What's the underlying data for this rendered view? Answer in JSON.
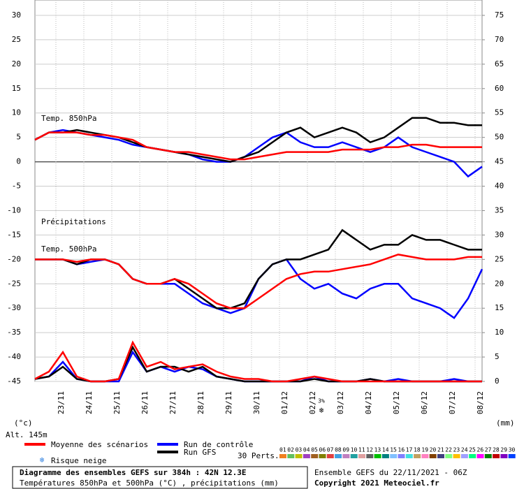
{
  "chart_data": {
    "type": "line",
    "labels": {
      "t850": "Temp. 850hPa",
      "precip": "Précipitations",
      "t500": "Temp. 500hPa",
      "yunit": "(°c)",
      "y2unit": "(mm)",
      "alt": "Alt. 145m"
    },
    "x": [
      0,
      12,
      24,
      36,
      48,
      60,
      72,
      84,
      96,
      108,
      120,
      132,
      144,
      156,
      168,
      180,
      192,
      204,
      216,
      228,
      240,
      252,
      264,
      276,
      288,
      300,
      312,
      324,
      336,
      348,
      360,
      372,
      384
    ],
    "xlim": [
      0,
      384
    ],
    "xticks": [
      {
        "value": 18,
        "label": "23/11"
      },
      {
        "value": 42,
        "label": "24/11"
      },
      {
        "value": 66,
        "label": "25/11"
      },
      {
        "value": 90,
        "label": "26/11"
      },
      {
        "value": 114,
        "label": "27/11"
      },
      {
        "value": 138,
        "label": "28/11"
      },
      {
        "value": 162,
        "label": "29/11"
      },
      {
        "value": 186,
        "label": "30/11"
      },
      {
        "value": 210,
        "label": "01/12"
      },
      {
        "value": 234,
        "label": "02/12"
      },
      {
        "value": 258,
        "label": "03/12"
      },
      {
        "value": 282,
        "label": "04/12"
      },
      {
        "value": 306,
        "label": "05/12"
      },
      {
        "value": 330,
        "label": "06/12"
      },
      {
        "value": 354,
        "label": "07/12"
      },
      {
        "value": 378,
        "label": "08/12"
      }
    ],
    "ylim": [
      -45,
      30
    ],
    "yticks": [
      30,
      25,
      20,
      15,
      10,
      5,
      0,
      -5,
      -10,
      -15,
      -20,
      -25,
      -30,
      -35,
      -40,
      -45
    ],
    "y2lim": [
      0,
      75
    ],
    "y2ticks": [
      75,
      70,
      65,
      60,
      55,
      50,
      45,
      40,
      35,
      30,
      25,
      20,
      15,
      10,
      5,
      0
    ],
    "grid": true,
    "groups": [
      {
        "name": "Moyenne des scénarios",
        "color": "#ff0000",
        "t850": [
          4.5,
          6,
          6,
          6,
          5.5,
          5.5,
          5,
          4.5,
          3,
          2.5,
          2,
          2,
          1.5,
          1,
          0.5,
          0.5,
          1,
          1.5,
          2,
          2,
          2,
          2,
          2.5,
          2.5,
          2.5,
          3,
          3,
          3.5,
          3.5,
          3,
          3,
          3,
          3
        ],
        "t500": [
          -20,
          -20,
          -20,
          -20.5,
          -20,
          -20,
          -21,
          -24,
          -25,
          -25,
          -24,
          -25,
          -27,
          -29,
          -30,
          -30,
          -28,
          -26,
          -24,
          -23,
          -22.5,
          -22.5,
          -22,
          -21.5,
          -21,
          -20,
          -19,
          -19.5,
          -20,
          -20,
          -20,
          -19.5,
          -19.5
        ],
        "precip": [
          0.5,
          2,
          6,
          1,
          0,
          0,
          0.5,
          8,
          3,
          4,
          2.5,
          3,
          3.5,
          2,
          1,
          0.5,
          0.5,
          0,
          0,
          0.5,
          1,
          0.5,
          0,
          0,
          0,
          0,
          0,
          0,
          0,
          0,
          0,
          0,
          0
        ]
      },
      {
        "name": "Run de contrôle",
        "color": "#0000ff",
        "t850": [
          4.5,
          6,
          6.5,
          6,
          5.5,
          5,
          4.5,
          3.5,
          3,
          2.5,
          2,
          1.5,
          0.5,
          0,
          0,
          1,
          3,
          5,
          6,
          4,
          3,
          3,
          4,
          3,
          2,
          3,
          5,
          3,
          2,
          1,
          0,
          -3,
          -1
        ],
        "t500": [
          -20,
          -20,
          -20,
          -21,
          -20.5,
          -20,
          -21,
          -24,
          -25,
          -25,
          -25,
          -27,
          -29,
          -30,
          -31,
          -30,
          -24,
          -21,
          -20,
          -24,
          -26,
          -25,
          -27,
          -28,
          -26,
          -25,
          -25,
          -28,
          -29,
          -30,
          -32,
          -28,
          -22
        ],
        "precip": [
          0.5,
          1,
          4,
          0.5,
          0,
          0,
          0,
          6,
          2,
          3,
          2,
          3,
          2.5,
          1,
          0.5,
          0,
          0,
          0,
          0,
          0,
          1,
          0,
          0,
          0,
          0.5,
          0,
          0.5,
          0,
          0,
          0,
          0.5,
          0,
          0
        ]
      },
      {
        "name": "Run GFS",
        "color": "#000000",
        "t850": [
          4.5,
          6,
          6,
          6.5,
          6,
          5.5,
          5,
          4,
          3,
          2.5,
          2,
          1.5,
          1,
          0.5,
          0,
          1,
          2,
          4,
          6,
          7,
          5,
          6,
          7,
          6,
          4,
          5,
          7,
          9,
          9,
          8,
          8,
          7.5,
          7.5
        ],
        "t500": [
          -20,
          -20,
          -20,
          -21,
          -20,
          -20,
          -21,
          -24,
          -25,
          -25,
          -24,
          -26,
          -28,
          -30,
          -30,
          -29,
          -24,
          -21,
          -20,
          -20,
          -19,
          -18,
          -14,
          -16,
          -18,
          -17,
          -17,
          -15,
          -16,
          -16,
          -17,
          -18,
          -18
        ],
        "precip": [
          0.5,
          1,
          3,
          0.5,
          0,
          0,
          0.5,
          7,
          2,
          3,
          3,
          2,
          3,
          1,
          0.5,
          0,
          0,
          0,
          0,
          0,
          0.5,
          0,
          0,
          0,
          0.5,
          0,
          0,
          0,
          0,
          0,
          0,
          0,
          0
        ]
      }
    ],
    "snow": {
      "label": "Risque neige",
      "x": 246,
      "risk": "3%"
    },
    "perts": {
      "label": "30 Perts.",
      "members": [
        {
          "label": "01",
          "color": "#f08020"
        },
        {
          "label": "02",
          "color": "#60c060"
        },
        {
          "label": "03",
          "color": "#c0c000"
        },
        {
          "label": "04",
          "color": "#a040c0"
        },
        {
          "label": "05",
          "color": "#a06020"
        },
        {
          "label": "06",
          "color": "#808000"
        },
        {
          "label": "07",
          "color": "#e04040"
        },
        {
          "label": "08",
          "color": "#40a0e0"
        },
        {
          "label": "09",
          "color": "#c080c0"
        },
        {
          "label": "10",
          "color": "#20a0a0"
        },
        {
          "label": "11",
          "color": "#e0a0a0"
        },
        {
          "label": "12",
          "color": "#606060"
        },
        {
          "label": "13",
          "color": "#00c000"
        },
        {
          "label": "14",
          "color": "#008080"
        },
        {
          "label": "15",
          "color": "#80c0ff"
        },
        {
          "label": "16",
          "color": "#8080ff"
        },
        {
          "label": "17",
          "color": "#40e0e0"
        },
        {
          "label": "18",
          "color": "#c0a060"
        },
        {
          "label": "19",
          "color": "#ff80c0"
        },
        {
          "label": "20",
          "color": "#804000"
        },
        {
          "label": "21",
          "color": "#404080"
        },
        {
          "label": "22",
          "color": "#80ff80"
        },
        {
          "label": "23",
          "color": "#ffc000"
        },
        {
          "label": "24",
          "color": "#a0a0ff"
        },
        {
          "label": "25",
          "color": "#00ff80"
        },
        {
          "label": "26",
          "color": "#ff00ff"
        },
        {
          "label": "27",
          "color": "#008000"
        },
        {
          "label": "28",
          "color": "#c00000"
        },
        {
          "label": "29",
          "color": "#8000c0"
        },
        {
          "label": "30",
          "color": "#0040ff"
        }
      ]
    },
    "footer": {
      "left1": "Diagramme des ensembles GEFS sur 384h : 42N 12.3E",
      "left2": "Températures 850hPa et 500hPa (°C) , précipitations (mm)",
      "right1": "Ensemble GEFS du 22/11/2021 - 06Z",
      "right2": "Copyright 2021 Meteociel.fr"
    }
  }
}
